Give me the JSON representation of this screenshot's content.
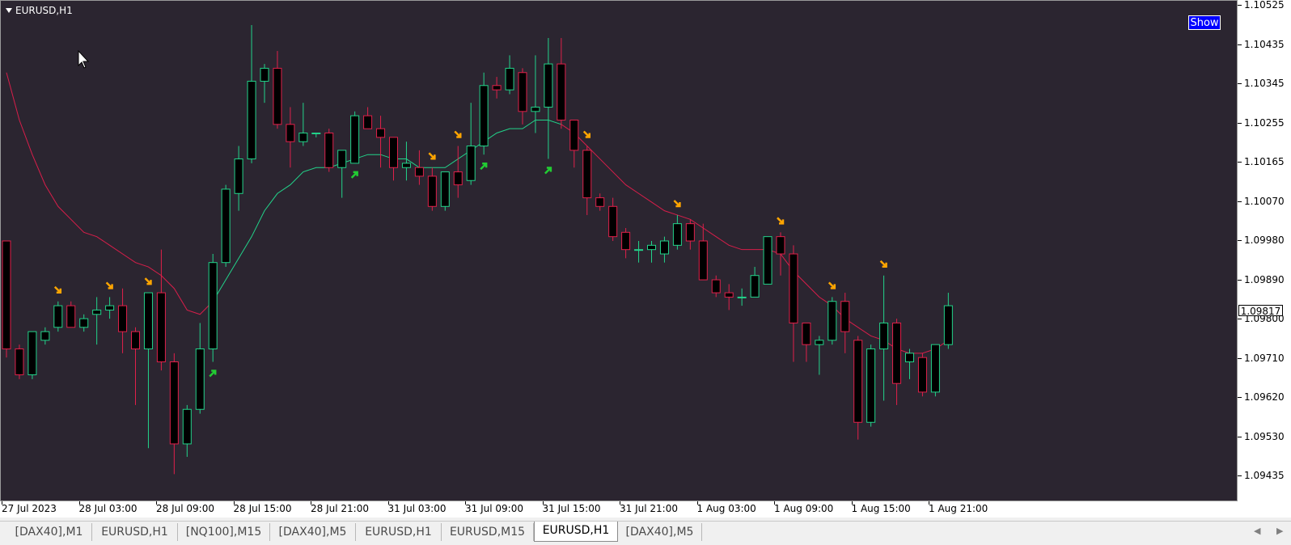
{
  "chart_header": {
    "symbol": "EURUSD,H1",
    "show_button": "Show"
  },
  "price_axis": {
    "labels": [
      "1.10525",
      "1.10435",
      "1.10345",
      "1.10255",
      "1.10165",
      "1.10070",
      "1.09980",
      "1.09890",
      "1.09800",
      "1.09710",
      "1.09620",
      "1.09530",
      "1.09435"
    ],
    "current_price": "1.09817"
  },
  "time_axis": {
    "labels": [
      "27 Jul 2023",
      "28 Jul 03:00",
      "28 Jul 09:00",
      "28 Jul 15:00",
      "28 Jul 21:00",
      "31 Jul 03:00",
      "31 Jul 09:00",
      "31 Jul 15:00",
      "31 Jul 21:00",
      "1 Aug 03:00",
      "1 Aug 09:00",
      "1 Aug 15:00",
      "1 Aug 21:00"
    ]
  },
  "tabs": [
    {
      "label": "[DAX40],M1",
      "active": false
    },
    {
      "label": "EURUSD,H1",
      "active": false
    },
    {
      "label": "[NQ100],M15",
      "active": false
    },
    {
      "label": "[DAX40],M5",
      "active": false
    },
    {
      "label": "EURUSD,H1",
      "active": false
    },
    {
      "label": "EURUSD,M15",
      "active": false
    },
    {
      "label": "EURUSD,H1",
      "active": true
    },
    {
      "label": "[DAX40],M5",
      "active": false
    }
  ],
  "nav": {
    "left_icon": "arrow-left-icon",
    "right_icon": "arrow-right-icon"
  },
  "colors": {
    "background": "#2b2530",
    "bull": "#22d38a",
    "bear": "#e0204a",
    "ma_up": "#22d38a",
    "ma_down": "#d81e4a",
    "arrow_up": "#22cc33",
    "arrow_down": "#ffa500"
  },
  "chart_data": {
    "type": "candlestick",
    "title": "EURUSD,H1",
    "ylim": [
      1.0941,
      1.1053
    ],
    "candles": [
      {
        "o": 1.0998,
        "h": 1.0998,
        "l": 1.0971,
        "c": 1.0973
      },
      {
        "o": 1.0973,
        "h": 1.0974,
        "l": 1.0966,
        "c": 1.0967
      },
      {
        "o": 1.0967,
        "h": 1.0977,
        "l": 1.0966,
        "c": 1.0977
      },
      {
        "o": 1.0975,
        "h": 1.0978,
        "l": 1.0974,
        "c": 1.0977
      },
      {
        "o": 1.0978,
        "h": 1.0984,
        "l": 1.0977,
        "c": 1.0983
      },
      {
        "o": 1.0983,
        "h": 1.0984,
        "l": 1.0978,
        "c": 1.0978
      },
      {
        "o": 1.0978,
        "h": 1.0981,
        "l": 1.0977,
        "c": 1.098
      },
      {
        "o": 1.0981,
        "h": 1.0985,
        "l": 1.0974,
        "c": 1.0982
      },
      {
        "o": 1.0982,
        "h": 1.0985,
        "l": 1.098,
        "c": 1.0983
      },
      {
        "o": 1.0983,
        "h": 1.0987,
        "l": 1.0972,
        "c": 1.0977
      },
      {
        "o": 1.0977,
        "h": 1.0978,
        "l": 1.096,
        "c": 1.0973
      },
      {
        "o": 1.0973,
        "h": 1.0986,
        "l": 1.095,
        "c": 1.0986
      },
      {
        "o": 1.0986,
        "h": 1.0996,
        "l": 1.0968,
        "c": 1.097
      },
      {
        "o": 1.097,
        "h": 1.0972,
        "l": 1.0944,
        "c": 1.0951
      },
      {
        "o": 1.0951,
        "h": 1.096,
        "l": 1.0948,
        "c": 1.0959
      },
      {
        "o": 1.0959,
        "h": 1.0979,
        "l": 1.0958,
        "c": 1.0973
      },
      {
        "o": 1.0973,
        "h": 1.0995,
        "l": 1.097,
        "c": 1.0993
      },
      {
        "o": 1.0993,
        "h": 1.1011,
        "l": 1.0992,
        "c": 1.101
      },
      {
        "o": 1.1009,
        "h": 1.102,
        "l": 1.1005,
        "c": 1.1017
      },
      {
        "o": 1.1017,
        "h": 1.1048,
        "l": 1.1016,
        "c": 1.1035
      },
      {
        "o": 1.1035,
        "h": 1.1039,
        "l": 1.103,
        "c": 1.1038
      },
      {
        "o": 1.1038,
        "h": 1.1042,
        "l": 1.1024,
        "c": 1.1025
      },
      {
        "o": 1.1025,
        "h": 1.1029,
        "l": 1.1015,
        "c": 1.1021
      },
      {
        "o": 1.1021,
        "h": 1.103,
        "l": 1.102,
        "c": 1.1023
      },
      {
        "o": 1.1023,
        "h": 1.1023,
        "l": 1.1022,
        "c": 1.1023
      },
      {
        "o": 1.1023,
        "h": 1.1024,
        "l": 1.1014,
        "c": 1.1015
      },
      {
        "o": 1.1015,
        "h": 1.1018,
        "l": 1.1008,
        "c": 1.1019
      },
      {
        "o": 1.1016,
        "h": 1.1028,
        "l": 1.1016,
        "c": 1.1027
      },
      {
        "o": 1.1027,
        "h": 1.1029,
        "l": 1.1024,
        "c": 1.1024
      },
      {
        "o": 1.1024,
        "h": 1.1027,
        "l": 1.1015,
        "c": 1.1022
      },
      {
        "o": 1.1022,
        "h": 1.1022,
        "l": 1.1012,
        "c": 1.1015
      },
      {
        "o": 1.1015,
        "h": 1.1021,
        "l": 1.1012,
        "c": 1.1016
      },
      {
        "o": 1.1015,
        "h": 1.1019,
        "l": 1.1011,
        "c": 1.1013
      },
      {
        "o": 1.1013,
        "h": 1.1015,
        "l": 1.1005,
        "c": 1.1006
      },
      {
        "o": 1.1006,
        "h": 1.1014,
        "l": 1.1005,
        "c": 1.1014
      },
      {
        "o": 1.1014,
        "h": 1.102,
        "l": 1.1008,
        "c": 1.1011
      },
      {
        "o": 1.1012,
        "h": 1.103,
        "l": 1.1011,
        "c": 1.102
      },
      {
        "o": 1.102,
        "h": 1.1037,
        "l": 1.1018,
        "c": 1.1034
      },
      {
        "o": 1.1034,
        "h": 1.1036,
        "l": 1.1031,
        "c": 1.1033
      },
      {
        "o": 1.1033,
        "h": 1.1041,
        "l": 1.1032,
        "c": 1.1038
      },
      {
        "o": 1.1037,
        "h": 1.1038,
        "l": 1.1025,
        "c": 1.1028
      },
      {
        "o": 1.1028,
        "h": 1.1041,
        "l": 1.1023,
        "c": 1.1029
      },
      {
        "o": 1.1029,
        "h": 1.1045,
        "l": 1.1017,
        "c": 1.1039
      },
      {
        "o": 1.1039,
        "h": 1.1045,
        "l": 1.1024,
        "c": 1.1026
      },
      {
        "o": 1.1026,
        "h": 1.1026,
        "l": 1.1015,
        "c": 1.1019
      },
      {
        "o": 1.1019,
        "h": 1.102,
        "l": 1.1004,
        "c": 1.1008
      },
      {
        "o": 1.1008,
        "h": 1.1009,
        "l": 1.1005,
        "c": 1.1006
      },
      {
        "o": 1.1006,
        "h": 1.1008,
        "l": 1.0998,
        "c": 1.0999
      },
      {
        "o": 1.1,
        "h": 1.1001,
        "l": 1.0994,
        "c": 1.0996
      },
      {
        "o": 1.0996,
        "h": 1.0998,
        "l": 1.0993,
        "c": 1.0996
      },
      {
        "o": 1.0996,
        "h": 1.0998,
        "l": 1.0993,
        "c": 1.0997
      },
      {
        "o": 1.0995,
        "h": 1.0999,
        "l": 1.0993,
        "c": 1.0998
      },
      {
        "o": 1.0997,
        "h": 1.1004,
        "l": 1.0996,
        "c": 1.1002
      },
      {
        "o": 1.1002,
        "h": 1.1003,
        "l": 1.0996,
        "c": 1.0998
      },
      {
        "o": 1.0998,
        "h": 1.1002,
        "l": 1.0989,
        "c": 1.0989
      },
      {
        "o": 1.0989,
        "h": 1.099,
        "l": 1.0985,
        "c": 1.0986
      },
      {
        "o": 1.0986,
        "h": 1.0988,
        "l": 1.0982,
        "c": 1.0985
      },
      {
        "o": 1.0985,
        "h": 1.0987,
        "l": 1.0983,
        "c": 1.0985
      },
      {
        "o": 1.0985,
        "h": 1.0992,
        "l": 1.0985,
        "c": 1.099
      },
      {
        "o": 1.0988,
        "h": 1.0999,
        "l": 1.0988,
        "c": 1.0999
      },
      {
        "o": 1.0999,
        "h": 1.1,
        "l": 1.099,
        "c": 1.0995
      },
      {
        "o": 1.0995,
        "h": 1.0997,
        "l": 1.097,
        "c": 1.0979
      },
      {
        "o": 1.0979,
        "h": 1.0979,
        "l": 1.097,
        "c": 1.0974
      },
      {
        "o": 1.0974,
        "h": 1.0976,
        "l": 1.0967,
        "c": 1.0975
      },
      {
        "o": 1.0975,
        "h": 1.0985,
        "l": 1.0974,
        "c": 1.0984
      },
      {
        "o": 1.0984,
        "h": 1.0986,
        "l": 1.0972,
        "c": 1.0977
      },
      {
        "o": 1.0975,
        "h": 1.0976,
        "l": 1.0952,
        "c": 1.0956
      },
      {
        "o": 1.0956,
        "h": 1.0974,
        "l": 1.0955,
        "c": 1.0973
      },
      {
        "o": 1.0973,
        "h": 1.099,
        "l": 1.0961,
        "c": 1.0979
      },
      {
        "o": 1.0979,
        "h": 1.098,
        "l": 1.096,
        "c": 1.0965
      },
      {
        "o": 1.097,
        "h": 1.0973,
        "l": 1.0966,
        "c": 1.0972
      },
      {
        "o": 1.0971,
        "h": 1.0972,
        "l": 1.0962,
        "c": 1.0963
      },
      {
        "o": 1.0963,
        "h": 1.0974,
        "l": 1.0962,
        "c": 1.0974
      },
      {
        "o": 1.0974,
        "h": 1.0986,
        "l": 1.0973,
        "c": 1.0983
      }
    ],
    "ma": [
      1.1037,
      1.1026,
      1.1018,
      1.1011,
      1.1006,
      1.1003,
      1.1,
      1.0999,
      1.0997,
      1.0995,
      1.0993,
      1.0992,
      1.099,
      1.0987,
      1.0982,
      1.0981,
      1.0984,
      1.0989,
      1.0994,
      1.0999,
      1.1005,
      1.1009,
      1.1011,
      1.1014,
      1.1015,
      1.1015,
      1.1016,
      1.1017,
      1.1018,
      1.1018,
      1.1017,
      1.1017,
      1.1015,
      1.1015,
      1.1015,
      1.1017,
      1.1019,
      1.1021,
      1.1023,
      1.1024,
      1.1024,
      1.1026,
      1.1026,
      1.1025,
      1.1023,
      1.102,
      1.1017,
      1.1014,
      1.1011,
      1.1009,
      1.1007,
      1.1005,
      1.1004,
      1.1003,
      1.1001,
      1.0999,
      1.0997,
      1.0996,
      1.0996,
      1.0996,
      1.0995,
      1.0991,
      1.0988,
      1.0985,
      1.0983,
      1.098,
      1.0978,
      1.0976,
      1.0975,
      1.0973,
      1.0972,
      1.0972,
      1.0973,
      1.0975
    ],
    "ma_color_switch_index": [
      16,
      43
    ],
    "signals": [
      {
        "type": "sell",
        "i": 4
      },
      {
        "type": "sell",
        "i": 8
      },
      {
        "type": "sell",
        "i": 11
      },
      {
        "type": "buy",
        "i": 16
      },
      {
        "type": "buy",
        "i": 27
      },
      {
        "type": "sell",
        "i": 33
      },
      {
        "type": "sell",
        "i": 35
      },
      {
        "type": "buy",
        "i": 37
      },
      {
        "type": "buy",
        "i": 42
      },
      {
        "type": "sell",
        "i": 45
      },
      {
        "type": "sell",
        "i": 52
      },
      {
        "type": "sell",
        "i": 60
      },
      {
        "type": "sell",
        "i": 64
      },
      {
        "type": "sell",
        "i": 68
      }
    ]
  }
}
